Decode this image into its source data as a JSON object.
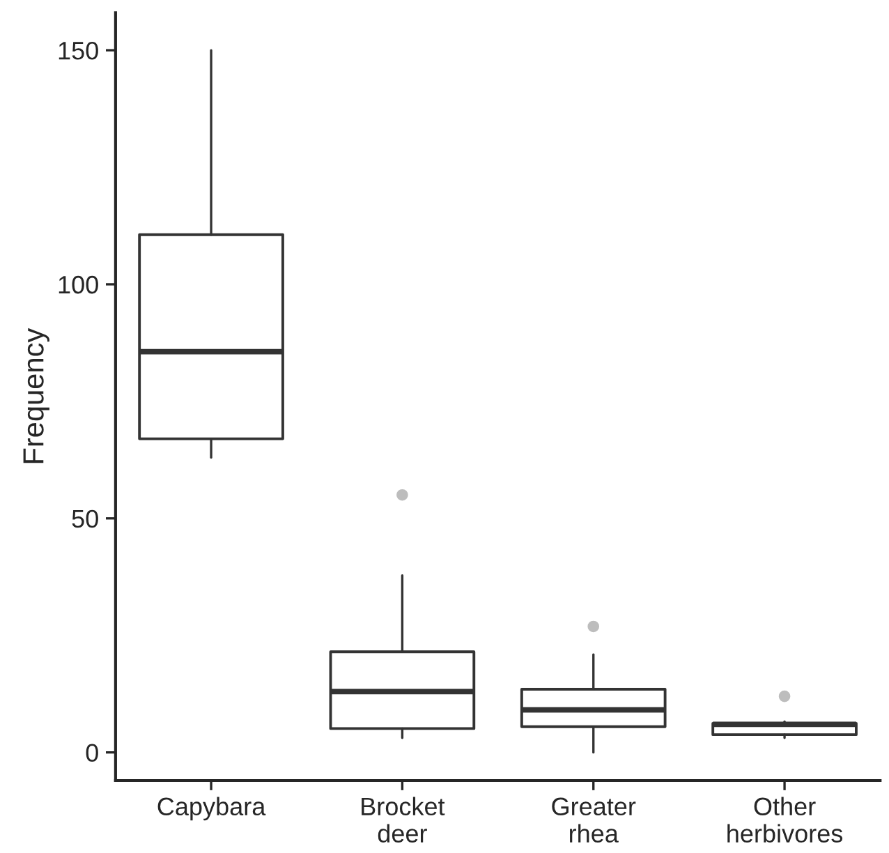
{
  "chart_data": {
    "type": "box",
    "ylabel": "Frequency",
    "categories": [
      "Capybara",
      "Brocket\ndeer",
      "Greater\nrhea",
      "Other\nherbivores"
    ],
    "boxes": [
      {
        "low": 63,
        "q1": 67,
        "median": 85.6,
        "q3": 110.6,
        "high": 150
      },
      {
        "low": 3.1,
        "q1": 5.1,
        "median": 13,
        "q3": 21.5,
        "high": 37.8,
        "outliers": [
          55
        ]
      },
      {
        "low": 0,
        "q1": 5.5,
        "median": 9.1,
        "q3": 13.5,
        "high": 20.9,
        "outliers": [
          26.9
        ]
      },
      {
        "low": 3.1,
        "q1": 3.8,
        "median": 6,
        "q3": 6.2,
        "high": 6.6,
        "outliers": [
          12
        ]
      }
    ],
    "color": "#333333",
    "ylim": [
      -6,
      158
    ],
    "yticks": [
      0,
      50,
      100,
      150
    ],
    "grid": false
  }
}
